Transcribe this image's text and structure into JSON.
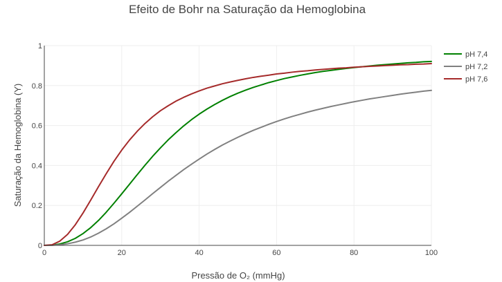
{
  "chart_data": {
    "type": "line",
    "title": "Efeito de Bohr na Saturação da Hemoglobina",
    "xlabel": "Pressão de O₂ (mmHg)",
    "ylabel": "Saturação da Hemoglobina (Y)",
    "xlim": [
      0,
      100
    ],
    "ylim": [
      0,
      1
    ],
    "x_ticks": [
      0,
      20,
      40,
      60,
      80,
      100
    ],
    "y_ticks": [
      0,
      0.2,
      0.4,
      0.6,
      0.8,
      1
    ],
    "y_tick_labels": [
      "0",
      "0.2",
      "0.4",
      "0.6",
      "0.8",
      "1"
    ],
    "grid": true,
    "legend_position": "top-right",
    "series": [
      {
        "name": "pH 7,4",
        "color": "#008000",
        "x": [
          0,
          2,
          4,
          6,
          8,
          10,
          12,
          14,
          16,
          18,
          20,
          22,
          24,
          26,
          28,
          30,
          32,
          34,
          36,
          38,
          40,
          42,
          44,
          46,
          48,
          50,
          52,
          54,
          56,
          58,
          60,
          62,
          64,
          66,
          68,
          70,
          72,
          74,
          76,
          78,
          80,
          82,
          84,
          86,
          88,
          90,
          92,
          94,
          96,
          98,
          100
        ],
        "values": [
          0,
          0.001,
          0.007,
          0.018,
          0.035,
          0.059,
          0.089,
          0.125,
          0.166,
          0.211,
          0.258,
          0.306,
          0.354,
          0.401,
          0.446,
          0.488,
          0.528,
          0.564,
          0.598,
          0.629,
          0.657,
          0.682,
          0.705,
          0.726,
          0.745,
          0.762,
          0.777,
          0.791,
          0.803,
          0.815,
          0.825,
          0.835,
          0.843,
          0.851,
          0.858,
          0.865,
          0.871,
          0.876,
          0.881,
          0.886,
          0.89,
          0.894,
          0.898,
          0.902,
          0.905,
          0.908,
          0.911,
          0.914,
          0.916,
          0.919,
          0.921
        ]
      },
      {
        "name": "pH 7,2",
        "color": "#808080",
        "x": [
          0,
          2,
          4,
          6,
          8,
          10,
          12,
          14,
          16,
          18,
          20,
          22,
          24,
          26,
          28,
          30,
          32,
          34,
          36,
          38,
          40,
          42,
          44,
          46,
          48,
          50,
          52,
          54,
          56,
          58,
          60,
          62,
          64,
          66,
          68,
          70,
          72,
          74,
          76,
          78,
          80,
          82,
          84,
          86,
          88,
          90,
          92,
          94,
          96,
          98,
          100
        ],
        "values": [
          0,
          0.0005,
          0.003,
          0.008,
          0.016,
          0.027,
          0.042,
          0.061,
          0.083,
          0.108,
          0.136,
          0.165,
          0.196,
          0.227,
          0.259,
          0.29,
          0.321,
          0.35,
          0.379,
          0.406,
          0.432,
          0.457,
          0.48,
          0.502,
          0.522,
          0.541,
          0.559,
          0.576,
          0.591,
          0.606,
          0.62,
          0.633,
          0.645,
          0.656,
          0.667,
          0.677,
          0.686,
          0.695,
          0.703,
          0.711,
          0.719,
          0.726,
          0.733,
          0.739,
          0.745,
          0.751,
          0.757,
          0.762,
          0.767,
          0.772,
          0.776
        ]
      },
      {
        "name": "pH 7,6",
        "color": "#a52a2a",
        "x": [
          0,
          2,
          4,
          6,
          8,
          10,
          12,
          14,
          16,
          18,
          20,
          22,
          24,
          26,
          28,
          30,
          32,
          34,
          36,
          38,
          40,
          42,
          44,
          46,
          48,
          50,
          52,
          54,
          56,
          58,
          60,
          62,
          64,
          66,
          68,
          70,
          72,
          74,
          76,
          78,
          80,
          82,
          84,
          86,
          88,
          90,
          92,
          94,
          96,
          98,
          100
        ],
        "values": [
          0,
          0.003,
          0.021,
          0.055,
          0.103,
          0.162,
          0.227,
          0.294,
          0.359,
          0.421,
          0.477,
          0.527,
          0.571,
          0.61,
          0.644,
          0.674,
          0.699,
          0.722,
          0.741,
          0.758,
          0.773,
          0.787,
          0.798,
          0.809,
          0.818,
          0.826,
          0.834,
          0.841,
          0.847,
          0.852,
          0.858,
          0.862,
          0.867,
          0.871,
          0.874,
          0.878,
          0.881,
          0.884,
          0.887,
          0.889,
          0.892,
          0.894,
          0.896,
          0.898,
          0.9,
          0.902,
          0.904,
          0.905,
          0.907,
          0.908,
          0.91
        ]
      }
    ]
  }
}
